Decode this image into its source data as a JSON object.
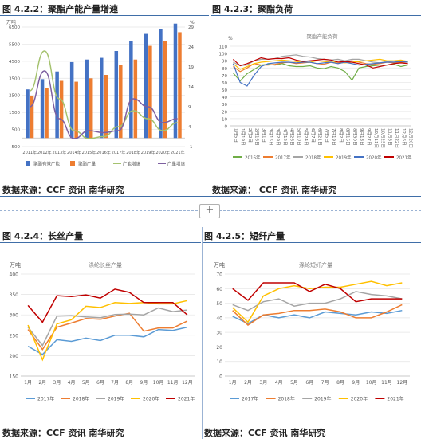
{
  "fig1": {
    "title": "图 4.2.2：聚酯产能产量增速",
    "source": "数据来源：CCF 资讯  南华研究",
    "unit_left": "万吨",
    "unit_right": "%"
  },
  "fig2": {
    "title": "图 4.2.3：聚酯负荷",
    "source": "数据来源： CCF 资讯  南华研究",
    "unit": "%",
    "inner_title": "聚酯产能负荷"
  },
  "fig3": {
    "title": "图 4.2.4：长丝产量",
    "source": "数据来源：CCF 资讯  南华研究",
    "unit": "万吨",
    "inner_title": "涤纶长丝产量"
  },
  "fig4": {
    "title": "图 4.2.5：短纤产量",
    "source": "数据来源：CCF 资讯  南华研究",
    "unit": "万吨",
    "inner_title": "涤纶短纤产量"
  },
  "ui": {
    "expand_label": "+"
  },
  "chart_data": [
    {
      "type": "bar",
      "categories": [
        "2011年",
        "2012年",
        "2013年",
        "2014年",
        "2015年",
        "2016年",
        "2017年",
        "2018年",
        "2019年",
        "2020年",
        "2021年"
      ],
      "ylim_left": [
        -500,
        6500
      ],
      "yticks_left": [
        -500,
        500,
        1500,
        2500,
        3500,
        4500,
        5500,
        6500
      ],
      "ylim_right": [
        -1,
        29
      ],
      "yticks_right": [
        -1,
        4,
        9,
        14,
        19,
        24,
        29
      ],
      "series": [
        {
          "name": "聚酯有效产能",
          "axis": "left",
          "kind": "bar",
          "color": "#4472c4",
          "values": [
            2850,
            3450,
            3900,
            4450,
            4600,
            4700,
            5100,
            5700,
            6100,
            6400,
            6700
          ]
        },
        {
          "name": "聚酯产量",
          "axis": "left",
          "kind": "bar",
          "color": "#ed7d31",
          "values": [
            2450,
            2950,
            3350,
            3300,
            3500,
            3700,
            4300,
            4600,
            5400,
            5700,
            6200
          ]
        },
        {
          "name": "产能增速",
          "axis": "right",
          "kind": "line",
          "color": "#a5c26f",
          "values": [
            13,
            23,
            11,
            3,
            1,
            1.5,
            4,
            8,
            6,
            3,
            5
          ]
        },
        {
          "name": "产量增速",
          "axis": "right",
          "kind": "line",
          "color": "#7d5fa0",
          "values": [
            9,
            18,
            6,
            1,
            3,
            2.5,
            3,
            11,
            9,
            5,
            6
          ]
        }
      ]
    },
    {
      "type": "line",
      "x": [
        "1月5日",
        "1月19日",
        "2月2日",
        "2月16日",
        "3月1日",
        "3月15日",
        "3月29日",
        "4月12日",
        "4月26日",
        "5月10日",
        "5月24日",
        "6月7日",
        "6月21日",
        "7月5日",
        "7月19日",
        "8月2日",
        "8月16日",
        "8月30日",
        "9月13日",
        "9月27日",
        "10月11日",
        "10月25日",
        "11月8日",
        "11月22日",
        "12月6日",
        "12月20日"
      ],
      "ylim": [
        0,
        110
      ],
      "yticks": [
        0,
        10,
        20,
        30,
        40,
        50,
        60,
        70,
        80,
        90,
        100,
        110
      ],
      "series": [
        {
          "name": "2016年",
          "color": "#70ad47",
          "values": [
            73,
            62,
            72,
            78,
            84,
            85,
            84,
            86,
            83,
            82,
            82,
            83,
            80,
            79,
            82,
            80,
            75,
            63,
            80,
            82,
            83,
            84,
            84,
            85,
            82,
            84
          ]
        },
        {
          "name": "2017年",
          "color": "#ed7d31",
          "values": [
            82,
            75,
            80,
            86,
            84,
            84,
            85,
            87,
            88,
            86,
            87,
            88,
            86,
            85,
            88,
            86,
            88,
            90,
            88,
            86,
            85,
            86,
            88,
            87,
            88,
            86
          ]
        },
        {
          "name": "2018年",
          "color": "#a5a5a5",
          "values": [
            88,
            83,
            84,
            90,
            92,
            92,
            93,
            96,
            97,
            98,
            96,
            95,
            93,
            92,
            91,
            92,
            90,
            92,
            92,
            90,
            88,
            87,
            89,
            88,
            90,
            88
          ]
        },
        {
          "name": "2019年",
          "color": "#ffc000",
          "values": [
            86,
            78,
            82,
            86,
            88,
            89,
            90,
            91,
            90,
            89,
            88,
            88,
            90,
            89,
            88,
            88,
            87,
            88,
            89,
            90,
            91,
            92,
            90,
            90,
            91,
            89
          ]
        },
        {
          "name": "2020年",
          "color": "#4472c4",
          "values": [
            86,
            60,
            55,
            70,
            82,
            86,
            87,
            88,
            88,
            87,
            88,
            88,
            86,
            87,
            88,
            86,
            88,
            86,
            84,
            85,
            86,
            87,
            88,
            88,
            89,
            88
          ]
        },
        {
          "name": "2021年",
          "color": "#c00000",
          "values": [
            92,
            83,
            86,
            90,
            94,
            92,
            93,
            93,
            94,
            91,
            89,
            90,
            91,
            92,
            91,
            88,
            89,
            88,
            86,
            84,
            80,
            82,
            84,
            86,
            87,
            86
          ]
        }
      ]
    },
    {
      "type": "line",
      "x": [
        "1月",
        "2月",
        "3月",
        "4月",
        "5月",
        "6月",
        "7月",
        "8月",
        "9月",
        "10月",
        "11月",
        "12月"
      ],
      "ylim": [
        150,
        400
      ],
      "yticks": [
        150,
        200,
        250,
        300,
        350,
        400
      ],
      "series": [
        {
          "name": "2017年",
          "color": "#5b9bd5",
          "values": [
            223,
            203,
            239,
            235,
            243,
            237,
            250,
            250,
            246,
            264,
            262,
            270
          ]
        },
        {
          "name": "2018年",
          "color": "#ed7d31",
          "values": [
            264,
            215,
            270,
            280,
            291,
            289,
            297,
            304,
            260,
            268,
            268,
            285
          ]
        },
        {
          "name": "2019年",
          "color": "#a5a5a5",
          "values": [
            270,
            225,
            297,
            298,
            295,
            293,
            301,
            302,
            300,
            317,
            308,
            312
          ]
        },
        {
          "name": "2020年",
          "color": "#ffc000",
          "values": [
            275,
            190,
            278,
            288,
            321,
            318,
            330,
            328,
            330,
            327,
            327,
            335
          ]
        },
        {
          "name": "2021年",
          "color": "#c00000",
          "values": [
            323,
            282,
            347,
            345,
            349,
            341,
            363,
            355,
            330,
            330,
            330,
            300
          ]
        }
      ]
    },
    {
      "type": "line",
      "x": [
        "1月",
        "2月",
        "3月",
        "4月",
        "5月",
        "6月",
        "7月",
        "8月",
        "9月",
        "10月",
        "11月",
        "12月"
      ],
      "ylim": [
        0,
        70
      ],
      "yticks": [
        0,
        10,
        20,
        30,
        40,
        50,
        60,
        70
      ],
      "series": [
        {
          "name": "2017年",
          "color": "#5b9bd5",
          "values": [
            41,
            36,
            42,
            40,
            42,
            40,
            44,
            43,
            42,
            44,
            43,
            45
          ]
        },
        {
          "name": "2018年",
          "color": "#ed7d31",
          "values": [
            45,
            35,
            42,
            43,
            45,
            45,
            46,
            44,
            40,
            40,
            44,
            49
          ]
        },
        {
          "name": "2019年",
          "color": "#a5a5a5",
          "values": [
            49,
            45,
            51,
            53,
            48,
            50,
            50,
            53,
            58,
            56,
            55,
            53
          ]
        },
        {
          "name": "2020年",
          "color": "#ffc000",
          "values": [
            47,
            37,
            55,
            60,
            62,
            60,
            61,
            61,
            63,
            65,
            62,
            64
          ]
        },
        {
          "name": "2021年",
          "color": "#c00000",
          "values": [
            60,
            52,
            64,
            64,
            64,
            58,
            63,
            60,
            51,
            53,
            53,
            53
          ]
        }
      ]
    }
  ]
}
